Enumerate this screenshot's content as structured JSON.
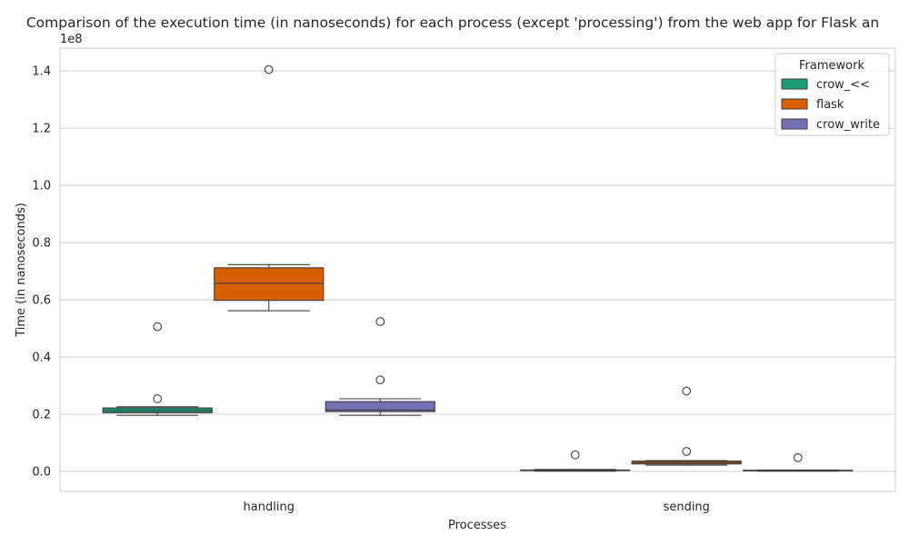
{
  "chart_data": {
    "type": "box",
    "title": "Comparison of the execution time (in nanoseconds) for each process (except 'processing') from the web app for Flask an",
    "xlabel": "Processes",
    "ylabel": "Time (in nanoseconds)",
    "y_multiplier": "1e8",
    "ylim": [
      -0.07,
      1.48
    ],
    "y_ticks": [
      0.0,
      0.2,
      0.4,
      0.6,
      0.8,
      1.0,
      1.2,
      1.4
    ],
    "y_tick_labels": [
      "0.0",
      "0.2",
      "0.4",
      "0.6",
      "0.8",
      "1.0",
      "1.2",
      "1.4"
    ],
    "grid": true,
    "legend": {
      "title": "Framework",
      "placement": "top-right"
    },
    "categories": [
      "handling",
      "sending"
    ],
    "series": [
      {
        "name": "crow_<<",
        "color": "#1b9e77",
        "boxes": [
          {
            "category": "handling",
            "whisker_low": 0.196,
            "q1": 0.205,
            "median": 0.213,
            "q3": 0.222,
            "whisker_high": 0.226,
            "outliers": [
              0.254,
              0.506
            ]
          },
          {
            "category": "sending",
            "whisker_low": 0.001,
            "q1": 0.003,
            "median": 0.004,
            "q3": 0.005,
            "whisker_high": 0.007,
            "outliers": [
              0.058
            ]
          }
        ]
      },
      {
        "name": "flask",
        "color": "#d95f02",
        "boxes": [
          {
            "category": "handling",
            "whisker_low": 0.562,
            "q1": 0.598,
            "median": 0.658,
            "q3": 0.712,
            "whisker_high": 0.723,
            "outliers": [
              1.405
            ]
          },
          {
            "category": "sending",
            "whisker_low": 0.022,
            "q1": 0.026,
            "median": 0.031,
            "q3": 0.036,
            "whisker_high": 0.038,
            "outliers": [
              0.07,
              0.281
            ]
          }
        ]
      },
      {
        "name": "crow_write",
        "color": "#7570b3",
        "boxes": [
          {
            "category": "handling",
            "whisker_low": 0.196,
            "q1": 0.209,
            "median": 0.215,
            "q3": 0.244,
            "whisker_high": 0.254,
            "outliers": [
              0.32,
              0.524
            ]
          },
          {
            "category": "sending",
            "whisker_low": 0.001,
            "q1": 0.002,
            "median": 0.003,
            "q3": 0.004,
            "whisker_high": 0.005,
            "outliers": [
              0.048
            ]
          }
        ]
      }
    ]
  }
}
